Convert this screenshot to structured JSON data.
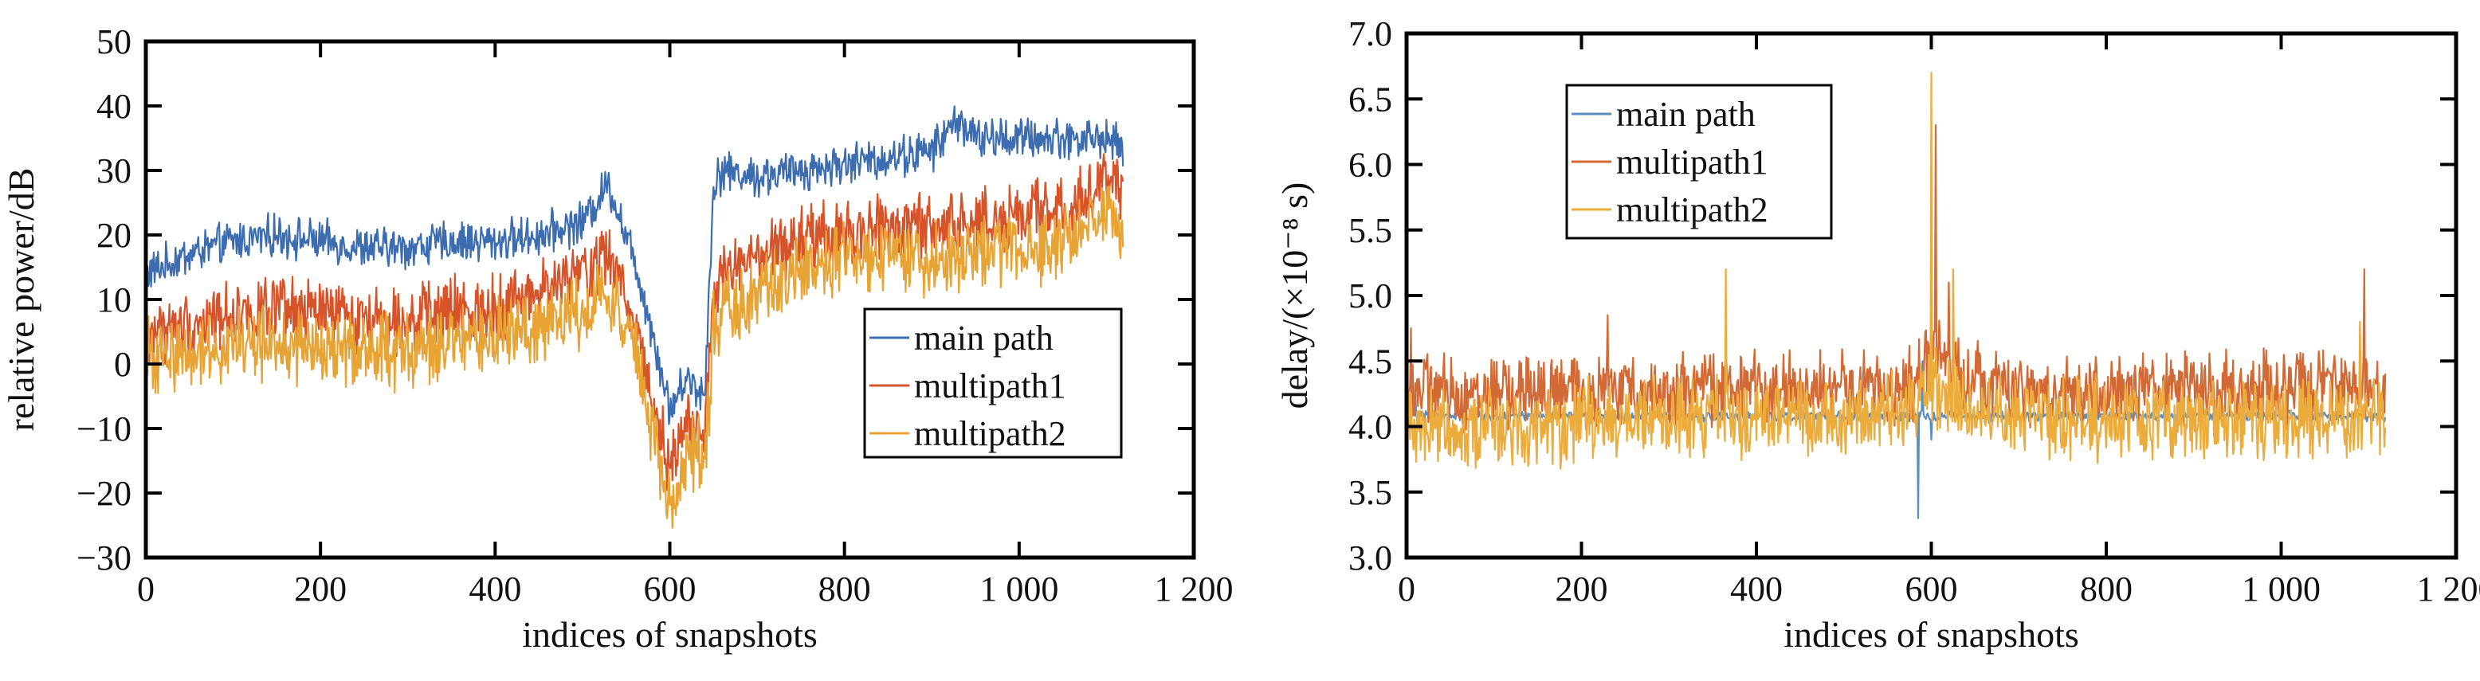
{
  "chart_data": [
    {
      "type": "line",
      "title": "",
      "xlabel": "indices of snapshots",
      "ylabel": "relative power/dB",
      "xlim": [
        0,
        1200
      ],
      "ylim": [
        -30,
        50
      ],
      "xticks": [
        0,
        200,
        400,
        600,
        800,
        1000,
        1200
      ],
      "xtick_labels": [
        "0",
        "200",
        "400",
        "600",
        "800",
        "1 000",
        "1 200"
      ],
      "yticks": [
        -30,
        -20,
        -10,
        0,
        10,
        20,
        30,
        40,
        50
      ],
      "ytick_labels": [
        "−30",
        "−20",
        "−10",
        "0",
        "10",
        "20",
        "30",
        "40",
        "50"
      ],
      "grid": false,
      "legend_position": "center-right",
      "samples": 1120,
      "series": [
        {
          "name": "main path",
          "color": "#3d6db1",
          "x": [
            0,
            50,
            100,
            150,
            200,
            250,
            300,
            350,
            400,
            450,
            500,
            530,
            560,
            580,
            600,
            620,
            640,
            650,
            660,
            700,
            750,
            800,
            850,
            900,
            930,
            950,
            1000,
            1050,
            1100,
            1120
          ],
          "y": [
            14,
            17,
            19,
            20,
            19,
            18,
            18,
            19,
            19,
            20,
            22,
            28,
            16,
            5,
            -7,
            -2,
            -5,
            28,
            30,
            29,
            30,
            31,
            32,
            33,
            38,
            35,
            35,
            35,
            35,
            33
          ],
          "noise": 2.5
        },
        {
          "name": "multipath1",
          "color": "#d7542a",
          "x": [
            0,
            50,
            100,
            150,
            200,
            250,
            300,
            350,
            400,
            450,
            500,
            530,
            560,
            580,
            600,
            620,
            640,
            650,
            660,
            700,
            750,
            800,
            850,
            900,
            950,
            1000,
            1050,
            1100,
            1120
          ],
          "y": [
            5,
            6,
            8,
            8,
            8,
            7,
            7,
            8,
            9,
            11,
            14,
            17,
            7,
            -5,
            -16,
            -8,
            -12,
            10,
            14,
            16,
            19,
            20,
            21,
            21,
            22,
            23,
            24,
            28,
            28
          ],
          "noise": 4
        },
        {
          "name": "multipath2",
          "color": "#e7a333",
          "x": [
            0,
            50,
            100,
            150,
            200,
            250,
            300,
            350,
            400,
            450,
            500,
            530,
            560,
            580,
            600,
            620,
            640,
            650,
            660,
            700,
            750,
            800,
            850,
            900,
            950,
            1000,
            1050,
            1100,
            1120
          ],
          "y": [
            1,
            2,
            3,
            3,
            2,
            2,
            2,
            3,
            4,
            6,
            8,
            12,
            2,
            -10,
            -23,
            -14,
            -15,
            5,
            8,
            11,
            14,
            16,
            16,
            16,
            17,
            18,
            19,
            23,
            22
          ],
          "noise": 4.5
        }
      ]
    },
    {
      "type": "line",
      "title": "",
      "xlabel": "indices of snapshots",
      "ylabel": "delay/(×10⁻⁸ s)",
      "xlim": [
        0,
        1200
      ],
      "ylim": [
        3.0,
        7.0
      ],
      "xticks": [
        0,
        200,
        400,
        600,
        800,
        1000,
        1200
      ],
      "xtick_labels": [
        "0",
        "200",
        "400",
        "600",
        "800",
        "1 000",
        "1 200"
      ],
      "yticks": [
        3.0,
        3.5,
        4.0,
        4.5,
        5.0,
        5.5,
        6.0,
        6.5,
        7.0
      ],
      "ytick_labels": [
        "3.0",
        "3.5",
        "4.0",
        "4.5",
        "5.0",
        "5.5",
        "6.0",
        "6.5",
        "7.0"
      ],
      "grid": false,
      "legend_position": "top-left",
      "samples": 1120,
      "series": [
        {
          "name": "main path",
          "color": "#5a8dc4",
          "x": [
            0,
            600,
            1120
          ],
          "y": [
            4.08,
            4.08,
            4.08
          ],
          "noise": 0.03,
          "spikes": [
            [
              10,
              4.3
            ],
            [
              585,
              3.3
            ],
            [
              590,
              4.5
            ],
            [
              600,
              3.9
            ]
          ]
        },
        {
          "name": "multipath1",
          "color": "#d36a35",
          "x": [
            0,
            50,
            300,
            580,
            600,
            640,
            700,
            1000,
            1120
          ],
          "y": [
            4.3,
            4.25,
            4.28,
            4.3,
            4.55,
            4.4,
            4.25,
            4.3,
            4.25
          ],
          "noise": 0.22,
          "spikes": [
            [
              5,
              4.75
            ],
            [
              230,
              4.85
            ],
            [
              365,
              4.6
            ],
            [
              605,
              6.3
            ],
            [
              620,
              5.1
            ],
            [
              1095,
              5.2
            ]
          ]
        },
        {
          "name": "multipath2",
          "color": "#ecac3c",
          "x": [
            0,
            50,
            300,
            580,
            600,
            640,
            700,
            1000,
            1120
          ],
          "y": [
            4.05,
            4.0,
            4.05,
            4.1,
            4.3,
            4.2,
            4.05,
            4.05,
            4.05
          ],
          "noise": 0.24,
          "spikes": [
            [
              365,
              5.2
            ],
            [
              600,
              6.7
            ],
            [
              625,
              5.2
            ],
            [
              1090,
              4.8
            ]
          ]
        }
      ]
    }
  ]
}
